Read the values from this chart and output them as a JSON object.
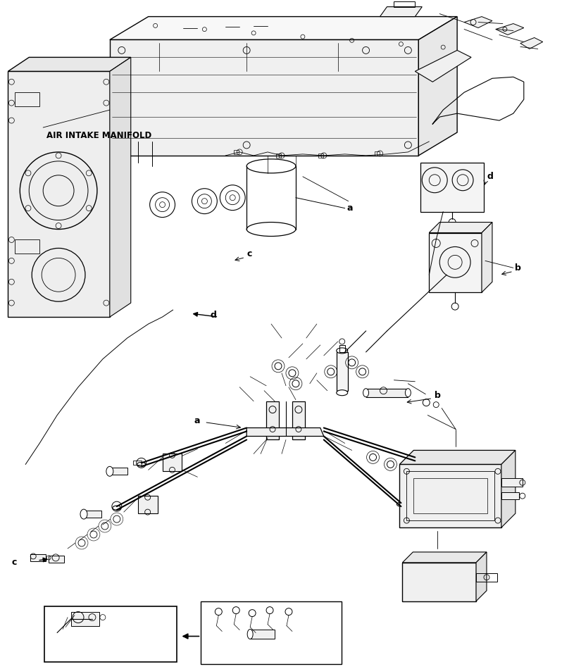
{
  "background_color": "#ffffff",
  "line_color": "#000000",
  "label_a": "a",
  "label_b": "b",
  "label_c": "c",
  "label_d": "d",
  "air_intake_label": "AIR INTAKE MANIFOLD",
  "fig_width": 7.98,
  "fig_height": 9.5,
  "dpi": 100
}
